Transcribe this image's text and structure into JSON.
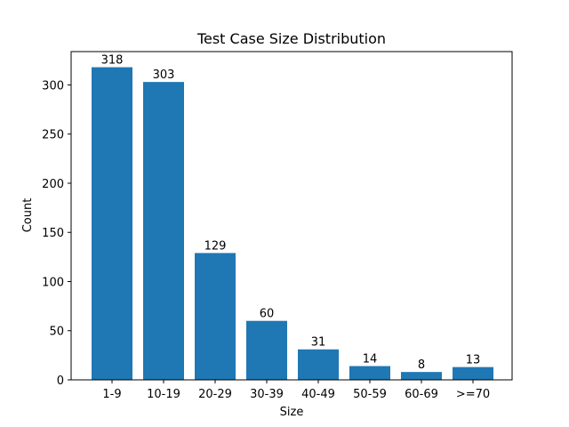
{
  "chart_data": {
    "type": "bar",
    "title": "Test Case Size Distribution",
    "xlabel": "Size",
    "ylabel": "Count",
    "categories": [
      "1-9",
      "10-19",
      "20-29",
      "30-39",
      "40-49",
      "50-59",
      "60-69",
      ">=70"
    ],
    "values": [
      318,
      303,
      129,
      60,
      31,
      14,
      8,
      13
    ],
    "data_labels": [
      "318",
      "303",
      "129",
      "60",
      "31",
      "14",
      "8",
      "13"
    ],
    "ylim": [
      0,
      333.9
    ],
    "yticks": [
      0,
      50,
      100,
      150,
      200,
      250,
      300
    ],
    "grid": false,
    "legend": "none",
    "bar_color": "#1f77b4"
  }
}
